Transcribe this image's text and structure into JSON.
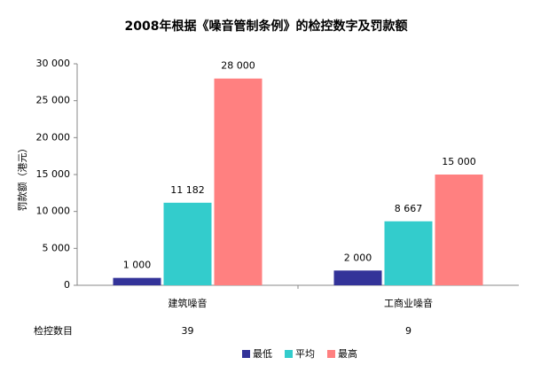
{
  "chart_data": {
    "type": "bar",
    "title": "2008年根据《噪音管制条例》的检控数字及罚款额",
    "y_label": "罚款额（港元）",
    "categories": [
      "建筑噪音",
      "工商业噪音"
    ],
    "series": [
      {
        "name": "最低",
        "color": "#333399",
        "values": [
          1000,
          2000
        ],
        "value_labels": [
          "1 000",
          "2 000"
        ]
      },
      {
        "name": "平均",
        "color": "#33cccc",
        "values": [
          11182,
          8667
        ],
        "value_labels": [
          "11 182",
          "8 667"
        ]
      },
      {
        "name": "最高",
        "color": "#ff8080",
        "values": [
          28000,
          15000
        ],
        "value_labels": [
          "28 000",
          "15 000"
        ]
      }
    ],
    "ylim": [
      0,
      30000
    ],
    "yticks": [
      0,
      {
        "value": 5000,
        "label": "5 000"
      },
      {
        "value": 10000,
        "label": "10 000"
      },
      {
        "value": 15000,
        "label": "15 000"
      },
      {
        "value": 20000,
        "label": "20 000"
      },
      {
        "value": 25000,
        "label": "25 000"
      },
      {
        "value": 30000,
        "label": "30 000"
      }
    ],
    "counts": {
      "label": "检控数目",
      "values": [
        39,
        9
      ]
    }
  }
}
